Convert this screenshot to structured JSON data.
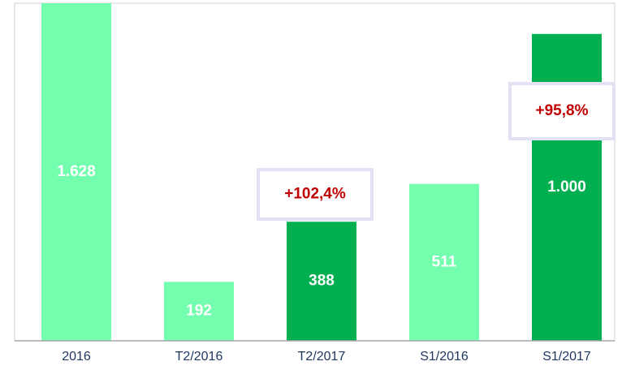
{
  "chart_data": {
    "type": "bar",
    "categories": [
      "2016",
      "T2/2016",
      "T2/2017",
      "S1/2016",
      "S1/2017"
    ],
    "values": [
      1628,
      192,
      388,
      511,
      1000
    ],
    "value_labels": [
      "1.628",
      "192",
      "388",
      "511",
      "1.000"
    ],
    "colors": [
      "#73ffae",
      "#73ffae",
      "#00b050",
      "#73ffae",
      "#00b050"
    ],
    "ylim": [
      0,
      1100
    ],
    "annotations": [
      "+102,4%",
      "+95,8%"
    ]
  }
}
